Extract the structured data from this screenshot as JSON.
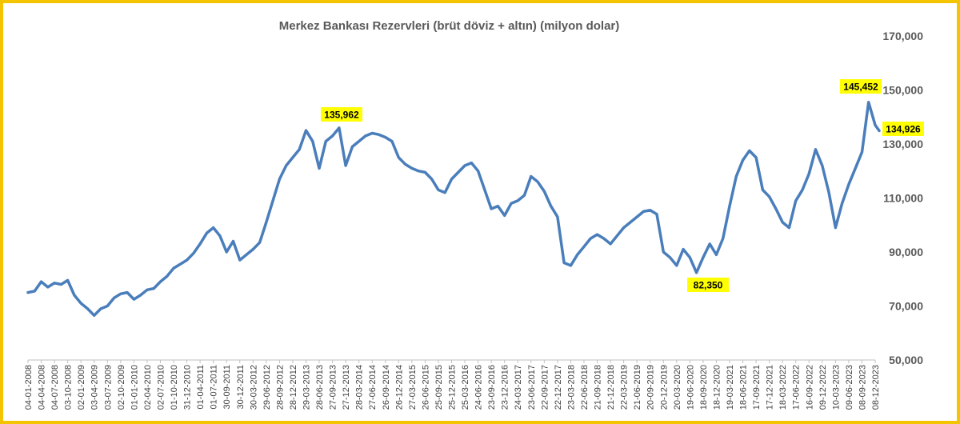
{
  "chart_data": {
    "type": "line",
    "title": "Merkez Bankası Rezervleri (brüt döviz + altın) (milyon dolar)",
    "xlabel": "",
    "ylabel": "",
    "ylim": [
      50000,
      170000
    ],
    "y_ticks": [
      50000,
      70000,
      90000,
      110000,
      130000,
      150000,
      170000
    ],
    "y_tick_labels": [
      "50,000",
      "70,000",
      "90,000",
      "110,000",
      "130,000",
      "150,000",
      "170,000"
    ],
    "x_tick_labels": [
      "04-01-2008",
      "04-04-2008",
      "04-07-2008",
      "03-10-2008",
      "02-01-2009",
      "03-04-2009",
      "03-07-2009",
      "02-10-2009",
      "01-01-2010",
      "02-04-2010",
      "02-07-2010",
      "01-10-2010",
      "31-12-2010",
      "01-04-2011",
      "01-07-2011",
      "30-09-2011",
      "30-12-2011",
      "30-03-2012",
      "29-06-2012",
      "28-09-2012",
      "28-12-2012",
      "29-03-2013",
      "28-06-2013",
      "27-09-2013",
      "27-12-2013",
      "28-03-2014",
      "27-06-2014",
      "26-09-2014",
      "26-12-2014",
      "27-03-2015",
      "26-06-2015",
      "25-09-2015",
      "25-12-2015",
      "25-03-2016",
      "24-06-2016",
      "23-09-2016",
      "23-12-2016",
      "24-03-2017",
      "23-06-2017",
      "22-09-2017",
      "22-12-2017",
      "23-03-2018",
      "22-06-2018",
      "21-09-2018",
      "21-12-2018",
      "22-03-2019",
      "21-06-2019",
      "20-09-2019",
      "20-12-2019",
      "20-03-2020",
      "19-06-2020",
      "18-09-2020",
      "18-12-2020",
      "19-03-2021",
      "18-06-2021",
      "17-09-2021",
      "17-12-2021",
      "18-03-2022",
      "17-06-2022",
      "16-09-2022",
      "09-12-2022",
      "10-03-2023",
      "09-06-2023",
      "08-09-2023",
      "08-12-2023"
    ],
    "series": [
      {
        "color": "#4a7ebb",
        "points": [
          [
            0,
            75000
          ],
          [
            0.5,
            75500
          ],
          [
            1,
            79000
          ],
          [
            1.5,
            77000
          ],
          [
            2,
            78500
          ],
          [
            2.5,
            78000
          ],
          [
            3,
            79500
          ],
          [
            3.5,
            74000
          ],
          [
            4,
            71000
          ],
          [
            4.5,
            69000
          ],
          [
            5,
            66500
          ],
          [
            5.5,
            69000
          ],
          [
            6,
            70000
          ],
          [
            6.5,
            73000
          ],
          [
            7,
            74500
          ],
          [
            7.5,
            75000
          ],
          [
            8,
            72500
          ],
          [
            8.5,
            74000
          ],
          [
            9,
            76000
          ],
          [
            9.5,
            76500
          ],
          [
            10,
            79000
          ],
          [
            10.5,
            81000
          ],
          [
            11,
            84000
          ],
          [
            11.5,
            85500
          ],
          [
            12,
            87000
          ],
          [
            12.5,
            89500
          ],
          [
            13,
            93000
          ],
          [
            13.5,
            97000
          ],
          [
            14,
            99000
          ],
          [
            14.5,
            96000
          ],
          [
            15,
            90000
          ],
          [
            15.5,
            94000
          ],
          [
            16,
            87000
          ],
          [
            16.5,
            89000
          ],
          [
            17,
            91000
          ],
          [
            17.5,
            93500
          ],
          [
            18,
            101000
          ],
          [
            18.5,
            109000
          ],
          [
            19,
            117000
          ],
          [
            19.5,
            122000
          ],
          [
            20,
            125000
          ],
          [
            20.5,
            128000
          ],
          [
            21,
            135000
          ],
          [
            21.5,
            131000
          ],
          [
            22,
            121000
          ],
          [
            22.5,
            131000
          ],
          [
            23,
            133000
          ],
          [
            23.5,
            135962
          ],
          [
            24,
            122000
          ],
          [
            24.5,
            129000
          ],
          [
            25,
            131000
          ],
          [
            25.5,
            133000
          ],
          [
            26,
            134000
          ],
          [
            26.5,
            133500
          ],
          [
            27,
            132500
          ],
          [
            27.5,
            131000
          ],
          [
            28,
            125000
          ],
          [
            28.5,
            122500
          ],
          [
            29,
            121000
          ],
          [
            29.5,
            120000
          ],
          [
            30,
            119500
          ],
          [
            30.5,
            117000
          ],
          [
            31,
            113000
          ],
          [
            31.5,
            112000
          ],
          [
            32,
            117000
          ],
          [
            32.5,
            119500
          ],
          [
            33,
            122000
          ],
          [
            33.5,
            123000
          ],
          [
            34,
            120000
          ],
          [
            34.5,
            113000
          ],
          [
            35,
            106000
          ],
          [
            35.5,
            107000
          ],
          [
            36,
            103500
          ],
          [
            36.5,
            108000
          ],
          [
            37,
            109000
          ],
          [
            37.5,
            111000
          ],
          [
            38,
            118000
          ],
          [
            38.5,
            116000
          ],
          [
            39,
            112500
          ],
          [
            39.5,
            107000
          ],
          [
            40,
            103000
          ],
          [
            40.5,
            86000
          ],
          [
            41,
            85000
          ],
          [
            41.5,
            89000
          ],
          [
            42,
            92000
          ],
          [
            42.5,
            95000
          ],
          [
            43,
            96500
          ],
          [
            43.5,
            95000
          ],
          [
            44,
            93000
          ],
          [
            44.5,
            96000
          ],
          [
            45,
            99000
          ],
          [
            45.5,
            101000
          ],
          [
            46,
            103000
          ],
          [
            46.5,
            105000
          ],
          [
            47,
            105500
          ],
          [
            47.5,
            104000
          ],
          [
            48,
            90000
          ],
          [
            48.5,
            88000
          ],
          [
            49,
            85000
          ],
          [
            49.5,
            91000
          ],
          [
            50,
            88000
          ],
          [
            50.5,
            82350
          ],
          [
            51,
            88000
          ],
          [
            51.5,
            93000
          ],
          [
            52,
            89000
          ],
          [
            52.5,
            95000
          ],
          [
            53,
            107000
          ],
          [
            53.5,
            118000
          ],
          [
            54,
            124000
          ],
          [
            54.5,
            127500
          ],
          [
            55,
            125000
          ],
          [
            55.5,
            113000
          ],
          [
            56,
            110500
          ],
          [
            56.5,
            106000
          ],
          [
            57,
            101000
          ],
          [
            57.5,
            99000
          ],
          [
            58,
            109000
          ],
          [
            58.5,
            113000
          ],
          [
            59,
            119000
          ],
          [
            59.5,
            128000
          ],
          [
            60,
            122000
          ],
          [
            60.5,
            112000
          ],
          [
            61,
            99000
          ],
          [
            61.5,
            108000
          ],
          [
            62,
            115000
          ],
          [
            62.5,
            121000
          ],
          [
            63,
            127000
          ],
          [
            63.5,
            145452
          ],
          [
            64,
            137000
          ],
          [
            64.3,
            134926
          ]
        ]
      }
    ],
    "annotations": [
      {
        "label": "135,962",
        "value": 135962
      },
      {
        "label": "82,350",
        "value": 82350
      },
      {
        "label": "145,452",
        "value": 145452
      },
      {
        "label": "134,926",
        "value": 134926
      }
    ],
    "colors": {
      "line": "#4a7ebb",
      "callout": "#ffff00",
      "border": "#f5c400"
    },
    "grid": false,
    "legend": "none"
  }
}
